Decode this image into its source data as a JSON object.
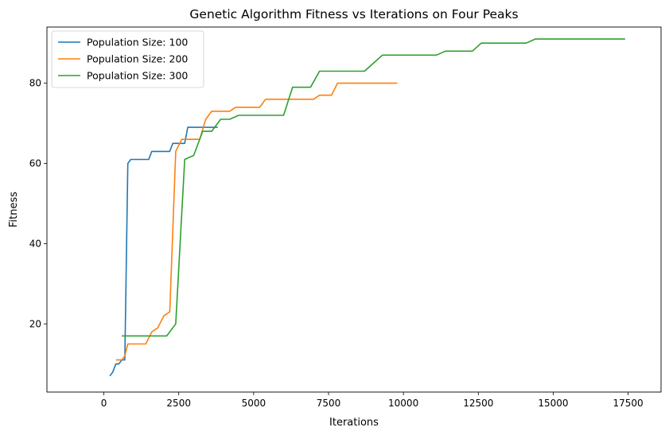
{
  "chart_data": {
    "type": "line",
    "title": "Genetic Algorithm Fitness vs Iterations on Four Peaks",
    "xlabel": "Iterations",
    "ylabel": "Fitness",
    "xlim": [
      -1900,
      18600
    ],
    "ylim": [
      3,
      94
    ],
    "xticks": [
      0,
      2500,
      5000,
      7500,
      10000,
      12500,
      15000,
      17500
    ],
    "yticks": [
      20,
      40,
      60,
      80
    ],
    "grid": false,
    "legend_position": "top-left",
    "series": [
      {
        "name": "Population Size: 100",
        "color": "#1f77b4",
        "x": [
          200,
          300,
          400,
          500,
          600,
          700,
          800,
          900,
          1000,
          1100,
          1200,
          1300,
          1400,
          1500,
          1600,
          1700,
          1800,
          1900,
          2000,
          2100,
          2200,
          2300,
          2400,
          2500,
          2600,
          2700,
          2800,
          2900,
          3000,
          3100,
          3200,
          3300,
          3400,
          3500,
          3600,
          3700,
          3800
        ],
        "y": [
          7,
          8,
          10,
          10,
          11,
          11,
          60,
          61,
          61,
          61,
          61,
          61,
          61,
          61,
          63,
          63,
          63,
          63,
          63,
          63,
          63,
          65,
          65,
          65,
          65,
          65,
          69,
          69,
          69,
          69,
          69,
          69,
          69,
          69,
          69,
          69,
          69
        ]
      },
      {
        "name": "Population Size: 200",
        "color": "#ff7f0e",
        "x": [
          400,
          600,
          700,
          800,
          1000,
          1200,
          1400,
          1600,
          1800,
          2000,
          2200,
          2400,
          2600,
          2800,
          3000,
          3200,
          3400,
          3600,
          3800,
          4000,
          4200,
          4400,
          4600,
          4800,
          5000,
          5200,
          5400,
          5600,
          5800,
          6000,
          6200,
          6400,
          6600,
          6800,
          7000,
          7200,
          7400,
          7600,
          7800,
          8000,
          8200,
          8400,
          8600,
          8800,
          9000,
          9200,
          9400,
          9600,
          9800
        ],
        "y": [
          11,
          11,
          12,
          15,
          15,
          15,
          15,
          18,
          19,
          22,
          23,
          63,
          66,
          66,
          66,
          66,
          71,
          73,
          73,
          73,
          73,
          74,
          74,
          74,
          74,
          74,
          76,
          76,
          76,
          76,
          76,
          76,
          76,
          76,
          76,
          77,
          77,
          77,
          80,
          80,
          80,
          80,
          80,
          80,
          80,
          80,
          80,
          80,
          80
        ]
      },
      {
        "name": "Population Size: 300",
        "color": "#2ca02c",
        "x": [
          600,
          900,
          1200,
          1500,
          1800,
          2100,
          2400,
          2700,
          3000,
          3300,
          3600,
          3900,
          4200,
          4500,
          4800,
          5100,
          5400,
          5700,
          6000,
          6300,
          6600,
          6900,
          7200,
          7500,
          7800,
          8100,
          8400,
          8700,
          9000,
          9300,
          9600,
          9900,
          10200,
          10500,
          10800,
          11100,
          11400,
          11700,
          12000,
          12300,
          12600,
          12900,
          13200,
          13500,
          13800,
          14100,
          14400,
          14700,
          15000,
          15300,
          15600,
          15900,
          16200,
          16500,
          16800,
          17100,
          17400
        ],
        "y": [
          17,
          17,
          17,
          17,
          17,
          17,
          20,
          61,
          62,
          68,
          68,
          71,
          71,
          72,
          72,
          72,
          72,
          72,
          72,
          79,
          79,
          79,
          83,
          83,
          83,
          83,
          83,
          83,
          85,
          87,
          87,
          87,
          87,
          87,
          87,
          87,
          88,
          88,
          88,
          88,
          90,
          90,
          90,
          90,
          90,
          90,
          91,
          91,
          91,
          91,
          91,
          91,
          91,
          91,
          91,
          91,
          91
        ]
      }
    ]
  }
}
